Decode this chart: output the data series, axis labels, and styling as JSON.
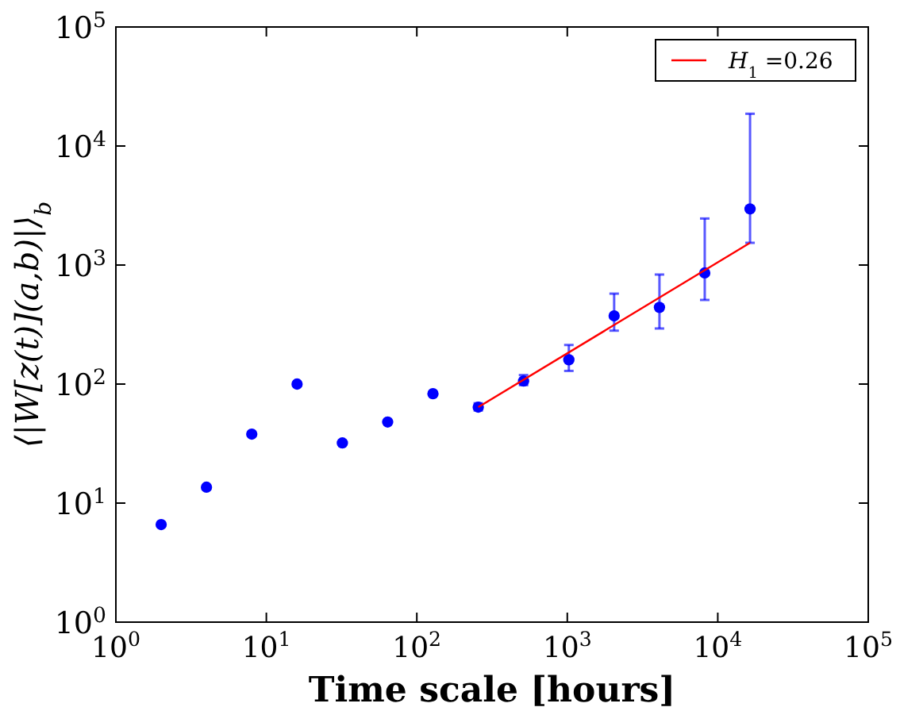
{
  "chart_data": {
    "type": "scatter",
    "xlabel": "Time scale [hours]",
    "ylabel": "⟨|W[z(t)](a,b)|⟩$_{b}$",
    "log": "xy",
    "legend": "top right",
    "xlim": [
      1,
      100000
    ],
    "ylim": [
      1,
      100000
    ],
    "xticks": [
      {
        "value": 1,
        "label": "10$^{0}$"
      },
      {
        "value": 10,
        "label": "10$^{1}$"
      },
      {
        "value": 100,
        "label": "10$^{2}$"
      },
      {
        "value": 1000,
        "label": "10$^{3}$"
      },
      {
        "value": 10000,
        "label": "10$^{4}$"
      },
      {
        "value": 100000,
        "label": "10$^{5}$"
      }
    ],
    "yticks": [
      {
        "value": 1,
        "label": "10$^{0}$"
      },
      {
        "value": 10,
        "label": "10$^{1}$"
      },
      {
        "value": 100,
        "label": "10$^{2}$"
      },
      {
        "value": 1000,
        "label": "10$^{3}$"
      },
      {
        "value": 10000,
        "label": "10$^{4}$"
      },
      {
        "value": 100000,
        "label": "10$^{5}$"
      }
    ],
    "series": [
      {
        "marker": "circle",
        "color": "#0000ff",
        "x": [
          2,
          4,
          8,
          16,
          32,
          64,
          128,
          256,
          512,
          1024,
          2048,
          4096,
          8192,
          16384
        ],
        "values": [
          6.6,
          13.6,
          38,
          100,
          32,
          48,
          83,
          64,
          106,
          160,
          374,
          441,
          858,
          2960
        ],
        "errors": [
          null,
          null,
          null,
          null,
          null,
          null,
          null,
          [
            60,
            69
          ],
          [
            98,
            119
          ],
          [
            129,
            213
          ],
          [
            281,
            575
          ],
          [
            293,
            832
          ],
          [
            509,
            2460
          ],
          [
            1537,
            18660
          ]
        ]
      },
      {
        "type": "line",
        "name": "H$_{1}$ =0.26",
        "color": "#ff0000",
        "x": [
          256,
          16384
        ],
        "values": [
          64,
          1537
        ]
      }
    ]
  }
}
